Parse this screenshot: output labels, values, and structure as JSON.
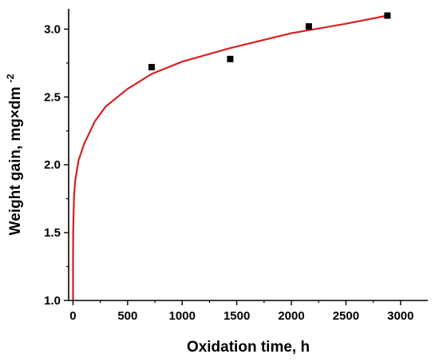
{
  "chart_data": {
    "type": "scatter",
    "title": "",
    "xlabel": "Oxidation time, h",
    "ylabel_main": "Weight gain, mg×dm",
    "ylabel_sup": "-2",
    "xlim": [
      -40,
      3250
    ],
    "ylim": [
      1.0,
      3.15
    ],
    "x_ticks": [
      0,
      500,
      1000,
      1500,
      2000,
      2500,
      3000
    ],
    "x_tick_labels": [
      "0",
      "500",
      "1000",
      "1500",
      "2000",
      "2500",
      "3000"
    ],
    "y_ticks": [
      1.0,
      1.5,
      2.0,
      2.5,
      3.0
    ],
    "y_tick_labels": [
      "1.0",
      "1.5",
      "2.0",
      "2.5",
      "3.0"
    ],
    "grid": false,
    "legend": "none",
    "series": [
      {
        "kind": "points",
        "marker": "square",
        "color": "#000000",
        "x": [
          720,
          1440,
          2160,
          2880
        ],
        "y": [
          2.72,
          2.78,
          3.02,
          3.1
        ]
      },
      {
        "kind": "fit-line",
        "color": "#d62020",
        "x": [
          0.05,
          0.5,
          2,
          5,
          10,
          20,
          50,
          100,
          200,
          300,
          500,
          720,
          1000,
          1440,
          2000,
          2500,
          2880
        ],
        "y": [
          1.0,
          1.29,
          1.51,
          1.65,
          1.77,
          1.88,
          2.03,
          2.15,
          2.32,
          2.43,
          2.56,
          2.67,
          2.76,
          2.86,
          2.97,
          3.04,
          3.1
        ]
      }
    ]
  }
}
